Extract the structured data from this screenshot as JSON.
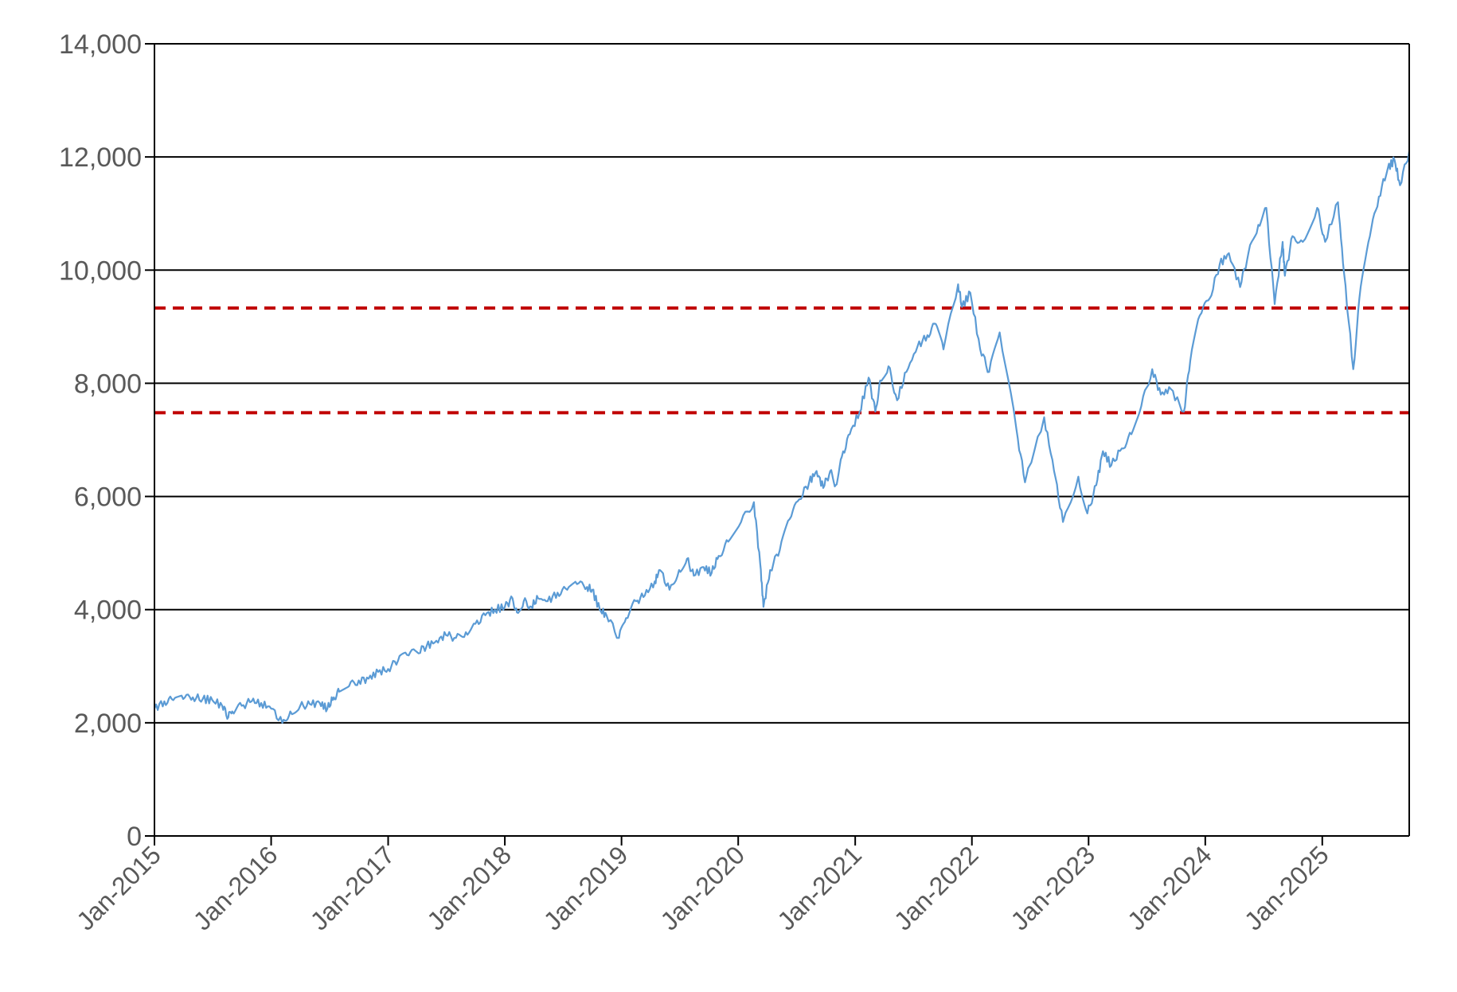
{
  "chart_data": {
    "type": "line",
    "title": "",
    "xlabel": "",
    "ylabel": "",
    "ylim": [
      0,
      14000
    ],
    "xlim": [
      "2015-01-01",
      "2025-09-30"
    ],
    "yticks": [
      {
        "value": 0,
        "label": "0"
      },
      {
        "value": 2000,
        "label": "2,000"
      },
      {
        "value": 4000,
        "label": "4,000"
      },
      {
        "value": 6000,
        "label": "6,000"
      },
      {
        "value": 8000,
        "label": "8,000"
      },
      {
        "value": 10000,
        "label": "10,000"
      },
      {
        "value": 12000,
        "label": "12,000"
      },
      {
        "value": 14000,
        "label": "14,000"
      }
    ],
    "xticks": [
      {
        "date": "2015-01-01",
        "label": "Jan-2015"
      },
      {
        "date": "2016-01-01",
        "label": "Jan-2016"
      },
      {
        "date": "2017-01-01",
        "label": "Jan-2017"
      },
      {
        "date": "2018-01-01",
        "label": "Jan-2018"
      },
      {
        "date": "2019-01-01",
        "label": "Jan-2019"
      },
      {
        "date": "2020-01-01",
        "label": "Jan-2020"
      },
      {
        "date": "2021-01-01",
        "label": "Jan-2021"
      },
      {
        "date": "2022-01-01",
        "label": "Jan-2022"
      },
      {
        "date": "2023-01-01",
        "label": "Jan-2023"
      },
      {
        "date": "2024-01-01",
        "label": "Jan-2024"
      },
      {
        "date": "2025-01-01",
        "label": "Jan-2025"
      }
    ],
    "grid": "horizontal",
    "series": [
      {
        "color": "#5b9bd5",
        "points": [
          [
            "2015-01-01",
            2250
          ],
          [
            "2015-02-01",
            2380
          ],
          [
            "2015-03-01",
            2400
          ],
          [
            "2015-04-01",
            2420
          ],
          [
            "2015-05-01",
            2450
          ],
          [
            "2015-06-01",
            2420
          ],
          [
            "2015-07-01",
            2400
          ],
          [
            "2015-08-01",
            2300
          ],
          [
            "2015-08-20",
            2100
          ],
          [
            "2015-09-01",
            2200
          ],
          [
            "2015-10-01",
            2300
          ],
          [
            "2015-11-01",
            2380
          ],
          [
            "2015-12-01",
            2350
          ],
          [
            "2016-01-01",
            2250
          ],
          [
            "2016-02-05",
            2000
          ],
          [
            "2016-03-01",
            2200
          ],
          [
            "2016-04-01",
            2300
          ],
          [
            "2016-05-01",
            2330
          ],
          [
            "2016-06-01",
            2350
          ],
          [
            "2016-06-25",
            2250
          ],
          [
            "2016-07-15",
            2450
          ],
          [
            "2016-08-01",
            2550
          ],
          [
            "2016-09-01",
            2650
          ],
          [
            "2016-10-01",
            2750
          ],
          [
            "2016-11-01",
            2780
          ],
          [
            "2016-12-01",
            2900
          ],
          [
            "2017-01-01",
            2950
          ],
          [
            "2017-02-01",
            3100
          ],
          [
            "2017-03-01",
            3200
          ],
          [
            "2017-04-01",
            3250
          ],
          [
            "2017-05-01",
            3350
          ],
          [
            "2017-06-01",
            3450
          ],
          [
            "2017-07-01",
            3550
          ],
          [
            "2017-08-01",
            3500
          ],
          [
            "2017-09-01",
            3600
          ],
          [
            "2017-10-01",
            3750
          ],
          [
            "2017-11-01",
            3900
          ],
          [
            "2017-12-01",
            4000
          ],
          [
            "2018-01-01",
            4050
          ],
          [
            "2018-01-25",
            4200
          ],
          [
            "2018-02-08",
            3950
          ],
          [
            "2018-03-01",
            4150
          ],
          [
            "2018-03-25",
            4050
          ],
          [
            "2018-04-15",
            4200
          ],
          [
            "2018-05-15",
            4150
          ],
          [
            "2018-06-15",
            4300
          ],
          [
            "2018-07-15",
            4350
          ],
          [
            "2018-08-15",
            4450
          ],
          [
            "2018-09-15",
            4400
          ],
          [
            "2018-10-01",
            4350
          ],
          [
            "2018-10-25",
            4000
          ],
          [
            "2018-11-15",
            3900
          ],
          [
            "2018-12-24",
            3500
          ],
          [
            "2019-01-15",
            3850
          ],
          [
            "2019-02-15",
            4150
          ],
          [
            "2019-03-15",
            4250
          ],
          [
            "2019-04-15",
            4500
          ],
          [
            "2019-05-01",
            4700
          ],
          [
            "2019-05-31",
            4350
          ],
          [
            "2019-06-30",
            4700
          ],
          [
            "2019-07-25",
            4900
          ],
          [
            "2019-08-15",
            4600
          ],
          [
            "2019-09-15",
            4750
          ],
          [
            "2019-10-10",
            4650
          ],
          [
            "2019-11-01",
            4950
          ],
          [
            "2019-12-01",
            5200
          ],
          [
            "2020-01-10",
            5550
          ],
          [
            "2020-02-19",
            5900
          ],
          [
            "2020-03-10",
            4800
          ],
          [
            "2020-03-20",
            4050
          ],
          [
            "2020-04-10",
            4700
          ],
          [
            "2020-05-10",
            5050
          ],
          [
            "2020-06-10",
            5600
          ],
          [
            "2020-07-10",
            5950
          ],
          [
            "2020-08-10",
            6250
          ],
          [
            "2020-09-02",
            6450
          ],
          [
            "2020-09-23",
            6150
          ],
          [
            "2020-10-15",
            6450
          ],
          [
            "2020-11-01",
            6200
          ],
          [
            "2020-11-20",
            6700
          ],
          [
            "2020-12-15",
            7100
          ],
          [
            "2021-01-15",
            7500
          ],
          [
            "2021-02-12",
            8100
          ],
          [
            "2021-03-05",
            7500
          ],
          [
            "2021-03-20",
            8050
          ],
          [
            "2021-04-15",
            8300
          ],
          [
            "2021-05-12",
            7700
          ],
          [
            "2021-06-10",
            8200
          ],
          [
            "2021-07-15",
            8650
          ],
          [
            "2021-08-15",
            8850
          ],
          [
            "2021-09-10",
            9050
          ],
          [
            "2021-10-04",
            8600
          ],
          [
            "2021-11-19",
            9750
          ],
          [
            "2021-12-01",
            9350
          ],
          [
            "2021-12-27",
            9600
          ],
          [
            "2022-01-27",
            8600
          ],
          [
            "2022-02-24",
            8200
          ],
          [
            "2022-03-29",
            8900
          ],
          [
            "2022-05-20",
            7200
          ],
          [
            "2022-06-16",
            6250
          ],
          [
            "2022-08-15",
            7400
          ],
          [
            "2022-09-15",
            6450
          ],
          [
            "2022-10-13",
            5550
          ],
          [
            "2022-11-30",
            6350
          ],
          [
            "2022-12-28",
            5700
          ],
          [
            "2023-01-25",
            6200
          ],
          [
            "2023-02-15",
            6800
          ],
          [
            "2023-03-13",
            6550
          ],
          [
            "2023-04-15",
            6850
          ],
          [
            "2023-05-15",
            7100
          ],
          [
            "2023-06-15",
            7600
          ],
          [
            "2023-07-19",
            8250
          ],
          [
            "2023-08-15",
            7800
          ],
          [
            "2023-09-15",
            7900
          ],
          [
            "2023-10-26",
            7500
          ],
          [
            "2023-11-15",
            8400
          ],
          [
            "2023-12-15",
            9200
          ],
          [
            "2024-01-15",
            9500
          ],
          [
            "2024-02-15",
            10100
          ],
          [
            "2024-03-15",
            10300
          ],
          [
            "2024-04-19",
            9700
          ],
          [
            "2024-05-15",
            10300
          ],
          [
            "2024-06-15",
            10800
          ],
          [
            "2024-07-10",
            11100
          ],
          [
            "2024-08-05",
            9400
          ],
          [
            "2024-08-30",
            10500
          ],
          [
            "2024-09-06",
            9900
          ],
          [
            "2024-09-30",
            10600
          ],
          [
            "2024-11-01",
            10500
          ],
          [
            "2024-12-16",
            11100
          ],
          [
            "2025-01-10",
            10500
          ],
          [
            "2025-02-19",
            11200
          ],
          [
            "2025-03-10",
            9950
          ],
          [
            "2025-04-08",
            8250
          ],
          [
            "2025-05-01",
            9700
          ],
          [
            "2025-05-30",
            10600
          ],
          [
            "2025-06-27",
            11300
          ],
          [
            "2025-07-25",
            11800
          ],
          [
            "2025-08-15",
            11950
          ],
          [
            "2025-09-01",
            11500
          ],
          [
            "2025-09-30",
            12100
          ]
        ]
      }
    ],
    "reference_lines": [
      {
        "value": 9330,
        "color": "#c00000",
        "style": "dashed"
      },
      {
        "value": 7480,
        "color": "#c00000",
        "style": "dashed"
      }
    ]
  }
}
